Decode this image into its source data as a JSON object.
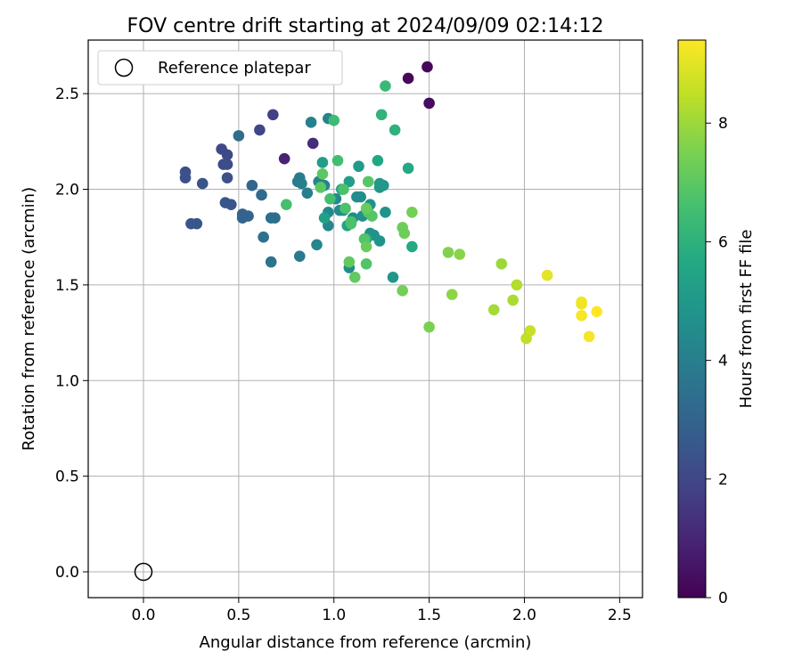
{
  "chart_data": {
    "type": "scatter",
    "title": "FOV centre drift starting at 2024/09/09 02:14:12",
    "xlabel": "Angular distance from reference (arcmin)",
    "ylabel": "Rotation from reference (arcmin)",
    "xlim": [
      -0.29,
      2.62
    ],
    "ylim": [
      -0.135,
      2.78
    ],
    "xticks": [
      0.0,
      0.5,
      1.0,
      1.5,
      2.0,
      2.5
    ],
    "xtick_labels": [
      "0.0",
      "0.5",
      "1.0",
      "1.5",
      "2.0",
      "2.5"
    ],
    "yticks": [
      0.0,
      0.5,
      1.0,
      1.5,
      2.0,
      2.5
    ],
    "ytick_labels": [
      "0.0",
      "0.5",
      "1.0",
      "1.5",
      "2.0",
      "2.5"
    ],
    "grid": true,
    "legend": {
      "placement": "top-left",
      "label": "Reference platepar"
    },
    "reference_point": {
      "x": 0.0,
      "y": 0.0
    },
    "colorbar": {
      "label": "Hours from first FF file",
      "min": 0,
      "max": 9.4,
      "ticks": [
        0,
        2,
        4,
        6,
        8
      ],
      "tick_labels": [
        "0",
        "2",
        "4",
        "6",
        "8"
      ],
      "colormap": "viridis"
    },
    "points": [
      {
        "x": 1.49,
        "y": 2.64,
        "c": 0.2
      },
      {
        "x": 1.39,
        "y": 2.58,
        "c": 0.2
      },
      {
        "x": 1.5,
        "y": 2.45,
        "c": 0.3
      },
      {
        "x": 0.74,
        "y": 2.16,
        "c": 0.9
      },
      {
        "x": 0.89,
        "y": 2.24,
        "c": 1.2
      },
      {
        "x": 0.68,
        "y": 2.39,
        "c": 1.8
      },
      {
        "x": 0.61,
        "y": 2.31,
        "c": 2.0
      },
      {
        "x": 0.41,
        "y": 2.21,
        "c": 2.1
      },
      {
        "x": 0.44,
        "y": 2.18,
        "c": 2.1
      },
      {
        "x": 0.42,
        "y": 2.13,
        "c": 2.2
      },
      {
        "x": 0.44,
        "y": 2.13,
        "c": 2.2
      },
      {
        "x": 0.22,
        "y": 2.09,
        "c": 2.3
      },
      {
        "x": 0.22,
        "y": 2.06,
        "c": 2.3
      },
      {
        "x": 0.44,
        "y": 2.06,
        "c": 2.3
      },
      {
        "x": 0.31,
        "y": 2.03,
        "c": 2.4
      },
      {
        "x": 0.43,
        "y": 1.93,
        "c": 2.5
      },
      {
        "x": 0.46,
        "y": 1.92,
        "c": 2.5
      },
      {
        "x": 0.25,
        "y": 1.82,
        "c": 2.5
      },
      {
        "x": 0.28,
        "y": 1.82,
        "c": 2.5
      },
      {
        "x": 0.52,
        "y": 1.87,
        "c": 3.0
      },
      {
        "x": 0.52,
        "y": 1.85,
        "c": 3.0
      },
      {
        "x": 0.55,
        "y": 1.86,
        "c": 3.0
      },
      {
        "x": 0.57,
        "y": 2.02,
        "c": 3.1
      },
      {
        "x": 0.5,
        "y": 2.28,
        "c": 3.3
      },
      {
        "x": 0.62,
        "y": 1.97,
        "c": 3.3
      },
      {
        "x": 0.67,
        "y": 1.85,
        "c": 3.4
      },
      {
        "x": 0.69,
        "y": 1.85,
        "c": 3.4
      },
      {
        "x": 0.63,
        "y": 1.75,
        "c": 3.5
      },
      {
        "x": 0.67,
        "y": 1.62,
        "c": 3.6
      },
      {
        "x": 0.82,
        "y": 1.65,
        "c": 3.8
      },
      {
        "x": 0.82,
        "y": 2.06,
        "c": 3.9
      },
      {
        "x": 0.81,
        "y": 2.04,
        "c": 3.9
      },
      {
        "x": 0.83,
        "y": 2.03,
        "c": 4.0
      },
      {
        "x": 0.86,
        "y": 1.98,
        "c": 4.0
      },
      {
        "x": 0.88,
        "y": 2.35,
        "c": 4.1
      },
      {
        "x": 0.97,
        "y": 2.37,
        "c": 4.2
      },
      {
        "x": 0.92,
        "y": 2.04,
        "c": 4.2
      },
      {
        "x": 0.95,
        "y": 2.02,
        "c": 4.2
      },
      {
        "x": 0.97,
        "y": 1.81,
        "c": 4.3
      },
      {
        "x": 0.91,
        "y": 1.71,
        "c": 4.3
      },
      {
        "x": 0.97,
        "y": 1.88,
        "c": 4.4
      },
      {
        "x": 1.01,
        "y": 1.95,
        "c": 4.4
      },
      {
        "x": 1.03,
        "y": 1.89,
        "c": 4.5
      },
      {
        "x": 1.05,
        "y": 1.89,
        "c": 4.5
      },
      {
        "x": 1.08,
        "y": 1.59,
        "c": 4.5
      },
      {
        "x": 1.1,
        "y": 1.85,
        "c": 4.6
      },
      {
        "x": 1.12,
        "y": 1.96,
        "c": 4.6
      },
      {
        "x": 1.14,
        "y": 1.96,
        "c": 4.6
      },
      {
        "x": 1.15,
        "y": 1.86,
        "c": 4.7
      },
      {
        "x": 1.19,
        "y": 1.92,
        "c": 4.7
      },
      {
        "x": 1.19,
        "y": 1.77,
        "c": 4.7
      },
      {
        "x": 1.21,
        "y": 1.76,
        "c": 4.8
      },
      {
        "x": 1.24,
        "y": 1.73,
        "c": 4.8
      },
      {
        "x": 1.27,
        "y": 1.88,
        "c": 4.8
      },
      {
        "x": 1.31,
        "y": 1.54,
        "c": 4.9
      },
      {
        "x": 1.24,
        "y": 2.03,
        "c": 5.0
      },
      {
        "x": 1.24,
        "y": 2.01,
        "c": 5.0
      },
      {
        "x": 1.26,
        "y": 2.02,
        "c": 5.0
      },
      {
        "x": 1.13,
        "y": 2.12,
        "c": 5.1
      },
      {
        "x": 1.08,
        "y": 2.04,
        "c": 5.2
      },
      {
        "x": 0.94,
        "y": 2.14,
        "c": 5.2
      },
      {
        "x": 1.04,
        "y": 2.0,
        "c": 5.3
      },
      {
        "x": 0.95,
        "y": 1.85,
        "c": 5.3
      },
      {
        "x": 1.07,
        "y": 1.81,
        "c": 5.4
      },
      {
        "x": 1.23,
        "y": 2.15,
        "c": 5.6
      },
      {
        "x": 1.39,
        "y": 2.11,
        "c": 5.7
      },
      {
        "x": 1.41,
        "y": 1.7,
        "c": 5.7
      },
      {
        "x": 1.17,
        "y": 1.74,
        "c": 5.8
      },
      {
        "x": 1.32,
        "y": 2.31,
        "c": 6.0
      },
      {
        "x": 1.25,
        "y": 2.39,
        "c": 6.1
      },
      {
        "x": 1.27,
        "y": 2.54,
        "c": 6.3
      },
      {
        "x": 1.0,
        "y": 2.36,
        "c": 6.4
      },
      {
        "x": 1.02,
        "y": 2.15,
        "c": 6.5
      },
      {
        "x": 0.75,
        "y": 1.92,
        "c": 6.6
      },
      {
        "x": 0.98,
        "y": 1.95,
        "c": 6.6
      },
      {
        "x": 1.05,
        "y": 2.0,
        "c": 6.7
      },
      {
        "x": 1.06,
        "y": 1.9,
        "c": 6.7
      },
      {
        "x": 1.09,
        "y": 1.82,
        "c": 6.7
      },
      {
        "x": 1.09,
        "y": 1.83,
        "c": 6.7
      },
      {
        "x": 1.16,
        "y": 1.74,
        "c": 6.8
      },
      {
        "x": 1.17,
        "y": 1.61,
        "c": 6.8
      },
      {
        "x": 1.18,
        "y": 1.88,
        "c": 6.9
      },
      {
        "x": 1.18,
        "y": 2.04,
        "c": 6.9
      },
      {
        "x": 1.2,
        "y": 1.86,
        "c": 6.9
      },
      {
        "x": 0.93,
        "y": 2.01,
        "c": 7.0
      },
      {
        "x": 0.94,
        "y": 2.08,
        "c": 7.0
      },
      {
        "x": 1.08,
        "y": 1.62,
        "c": 7.1
      },
      {
        "x": 1.11,
        "y": 1.54,
        "c": 7.1
      },
      {
        "x": 1.17,
        "y": 1.9,
        "c": 7.2
      },
      {
        "x": 1.17,
        "y": 1.7,
        "c": 7.2
      },
      {
        "x": 1.36,
        "y": 1.8,
        "c": 7.3
      },
      {
        "x": 1.37,
        "y": 1.77,
        "c": 7.3
      },
      {
        "x": 1.41,
        "y": 1.88,
        "c": 7.4
      },
      {
        "x": 1.36,
        "y": 1.47,
        "c": 7.4
      },
      {
        "x": 1.5,
        "y": 1.28,
        "c": 7.5
      },
      {
        "x": 1.6,
        "y": 1.67,
        "c": 7.6
      },
      {
        "x": 1.66,
        "y": 1.66,
        "c": 7.7
      },
      {
        "x": 1.62,
        "y": 1.45,
        "c": 7.8
      },
      {
        "x": 1.88,
        "y": 1.61,
        "c": 8.0
      },
      {
        "x": 1.84,
        "y": 1.37,
        "c": 8.1
      },
      {
        "x": 1.94,
        "y": 1.42,
        "c": 8.2
      },
      {
        "x": 1.96,
        "y": 1.5,
        "c": 8.3
      },
      {
        "x": 2.01,
        "y": 1.22,
        "c": 8.5
      },
      {
        "x": 2.03,
        "y": 1.26,
        "c": 8.6
      },
      {
        "x": 2.12,
        "y": 1.55,
        "c": 9.0
      },
      {
        "x": 2.3,
        "y": 1.41,
        "c": 9.2
      },
      {
        "x": 2.3,
        "y": 1.4,
        "c": 9.2
      },
      {
        "x": 2.3,
        "y": 1.34,
        "c": 9.3
      },
      {
        "x": 2.34,
        "y": 1.23,
        "c": 9.3
      },
      {
        "x": 2.38,
        "y": 1.36,
        "c": 9.4
      }
    ]
  }
}
